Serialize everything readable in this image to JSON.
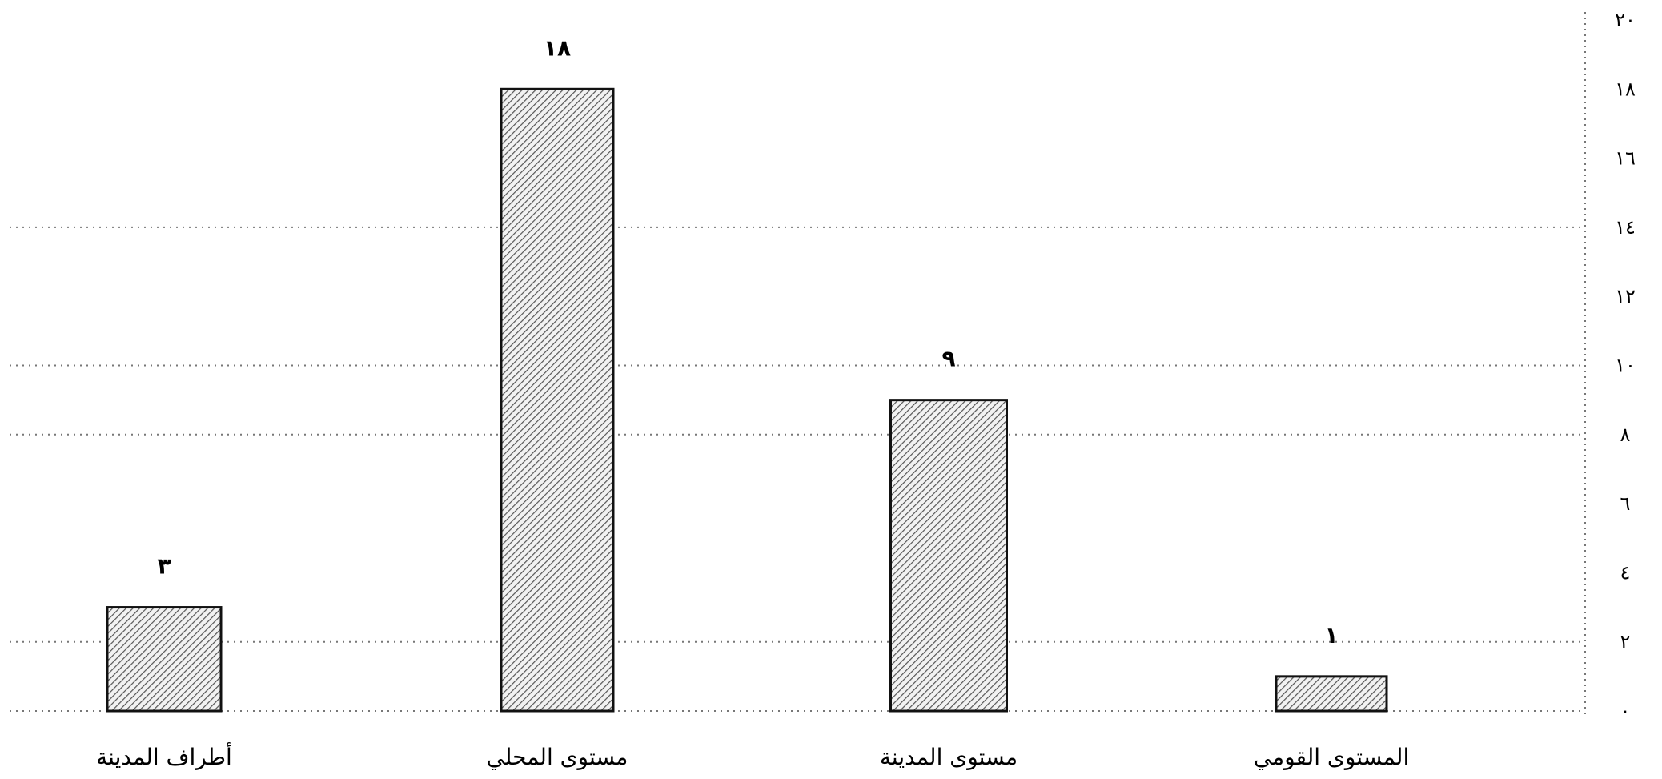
{
  "chart_data": {
    "type": "bar",
    "title": "",
    "xlabel": "",
    "ylabel": "",
    "categories": [
      "أطراف المدينة",
      "مستوى المحلي",
      "مستوى المدينة",
      "المستوى القومي"
    ],
    "values": [
      3,
      18,
      9,
      1
    ],
    "value_labels": [
      "٣",
      "١٨",
      "٩",
      "١"
    ],
    "ylim": [
      0,
      20
    ],
    "y_ticks": [
      0,
      2,
      4,
      6,
      8,
      10,
      12,
      14,
      16,
      18,
      20
    ],
    "y_tick_labels": [
      "٠",
      "٢",
      "٤",
      "٦",
      "٨",
      "١٠",
      "١٢",
      "١٤",
      "١٦",
      "١٨",
      "٢٠"
    ],
    "y_axis_side": "right",
    "gridlines": [
      2,
      8,
      10,
      14
    ],
    "grid": true,
    "legend": false,
    "bar_fill": "hatched",
    "colors": {
      "bar_fill": "#f2f2f2",
      "bar_hatch": "#555555",
      "bar_border": "#111111",
      "grid": "#777777",
      "text": "#000000"
    }
  }
}
